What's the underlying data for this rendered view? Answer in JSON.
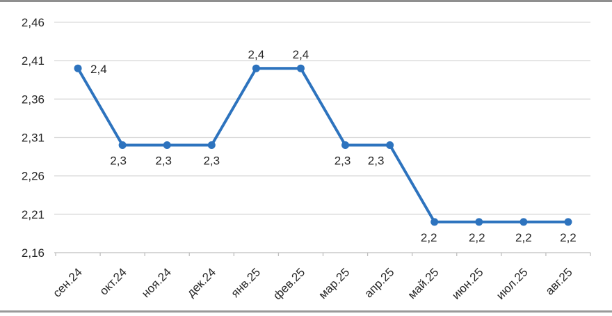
{
  "window": {
    "background": "#ffffff",
    "top_border_color": "#8f8f8f",
    "bottom_border_color": "#999999"
  },
  "chart_data": {
    "type": "line",
    "title": "",
    "xlabel": "",
    "ylabel": "",
    "categories": [
      "сен.24",
      "окт.24",
      "ноя.24",
      "дек.24",
      "янв.25",
      "фев.25",
      "мар.25",
      "апр.25",
      "май.25",
      "июн.25",
      "июл.25",
      "авг.25"
    ],
    "series": [
      {
        "name": "",
        "values": [
          2.4,
          2.3,
          2.3,
          2.3,
          2.4,
          2.4,
          2.3,
          2.3,
          2.2,
          2.2,
          2.2,
          2.2
        ]
      }
    ],
    "data_labels": [
      "2,4",
      "2,3",
      "2,3",
      "2,3",
      "2,4",
      "2,4",
      "2,3",
      "2,3",
      "2,2",
      "2,2",
      "2,2",
      "2,2"
    ],
    "label_positions": [
      "right",
      "below",
      "below",
      "below",
      "above",
      "above",
      "below",
      "below",
      "below",
      "below",
      "below",
      "below"
    ],
    "label_dx": [
      0,
      -6,
      -5,
      0,
      0,
      0,
      -4,
      -20,
      -8,
      -3,
      0,
      0
    ],
    "y_ticks": [
      {
        "label": "2,16",
        "value": 2.16
      },
      {
        "label": "2,21",
        "value": 2.21
      },
      {
        "label": "2,26",
        "value": 2.26
      },
      {
        "label": "2,31",
        "value": 2.31
      },
      {
        "label": "2,36",
        "value": 2.36
      },
      {
        "label": "2,41",
        "value": 2.41
      },
      {
        "label": "2,46",
        "value": 2.46
      }
    ],
    "ylim": [
      2.16,
      2.46
    ],
    "grid": true,
    "legend": "none",
    "decimal_separator": ",",
    "colors": {
      "line": "#2d73be",
      "marker": "#2d73be",
      "gridline": "#d9d9d9",
      "axis_line": "#bfbfbf",
      "tick": "#bfbfbf",
      "text": "#262626"
    }
  }
}
